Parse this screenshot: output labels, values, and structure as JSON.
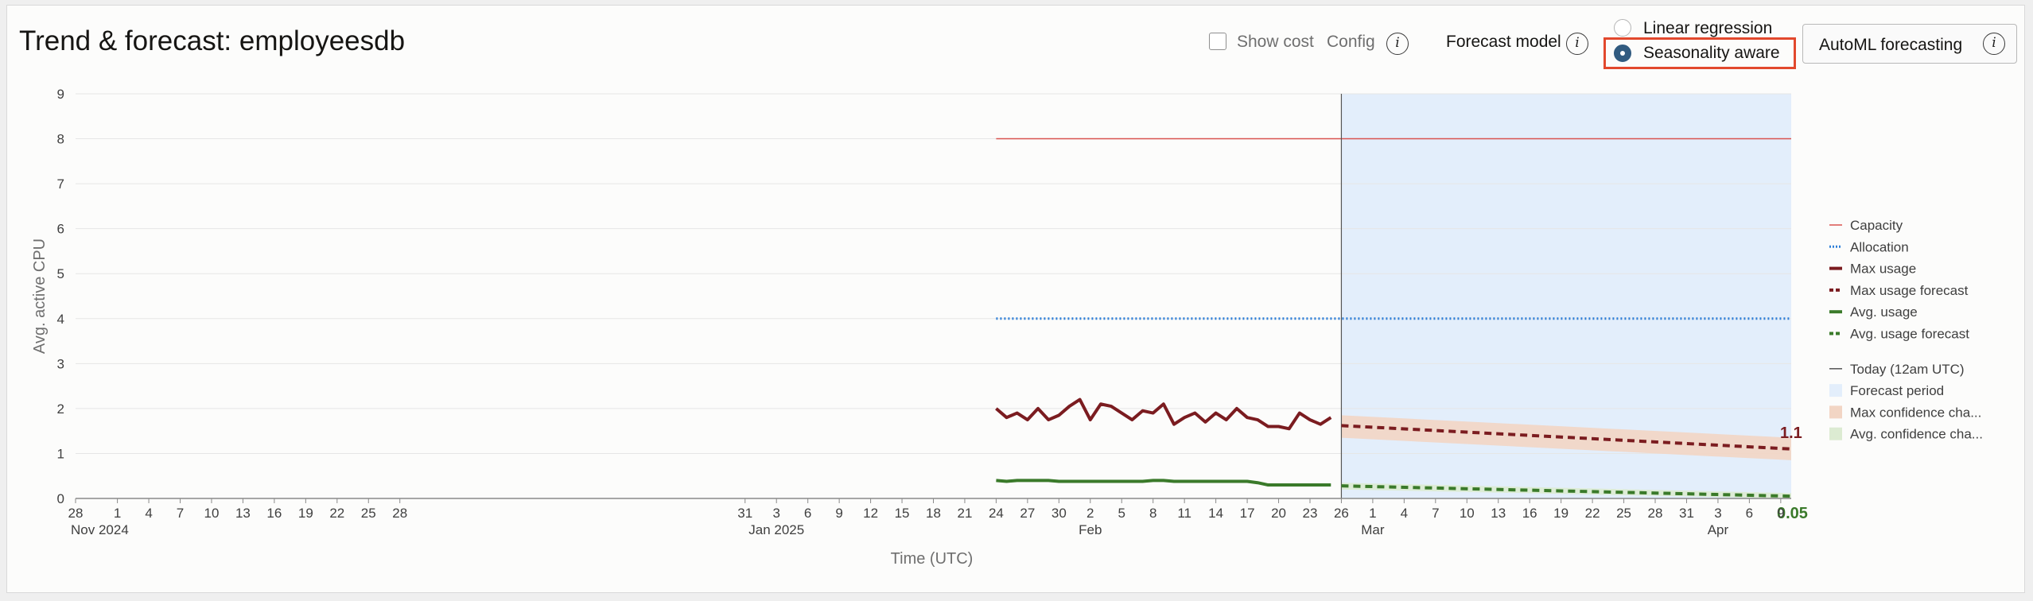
{
  "header": {
    "title": "Trend & forecast: employeesdb",
    "show_cost_label": "Show cost",
    "show_cost_checked": false,
    "config_label": "Config",
    "forecast_model_label": "Forecast model",
    "info_glyph": "i",
    "radio_options": [
      {
        "label": "Linear regression",
        "selected": false
      },
      {
        "label": "Seasonality aware",
        "selected": true
      }
    ],
    "automl_label": "AutoML forecasting"
  },
  "colors": {
    "capacity": "#d9534f",
    "allocation": "#2f7fd8",
    "max_usage": "#7b1c20",
    "avg_usage": "#3a7a2a",
    "forecast_period": "#e3eefb",
    "max_confidence": "#f2d5c4",
    "avg_confidence": "#dcebd2",
    "today": "#555555",
    "highlight": "#e2482d"
  },
  "chart_data": {
    "type": "line",
    "xlabel": "Time (UTC)",
    "ylabel": "Avg. active CPU",
    "ylim": [
      0,
      9
    ],
    "yticks": [
      0,
      1,
      2,
      3,
      4,
      5,
      6,
      7,
      8,
      9
    ],
    "xlim": [
      "2024-10-28",
      "2025-04-10"
    ],
    "xticks": [
      {
        "date": "2024-10-28",
        "label": "28",
        "sub": "Nov 2024"
      },
      {
        "date": "2024-11-01",
        "label": "1",
        "sub": ""
      },
      {
        "date": "2024-11-04",
        "label": "4",
        "sub": ""
      },
      {
        "date": "2024-11-07",
        "label": "7",
        "sub": ""
      },
      {
        "date": "2024-11-10",
        "label": "10",
        "sub": ""
      },
      {
        "date": "2024-11-13",
        "label": "13",
        "sub": ""
      },
      {
        "date": "2024-11-16",
        "label": "16",
        "sub": ""
      },
      {
        "date": "2024-11-19",
        "label": "19",
        "sub": ""
      },
      {
        "date": "2024-11-22",
        "label": "22",
        "sub": ""
      },
      {
        "date": "2024-11-25",
        "label": "25",
        "sub": ""
      },
      {
        "date": "2024-11-28",
        "label": "28",
        "sub": ""
      },
      {
        "date": "2024-12-31",
        "label": "31",
        "sub": ""
      },
      {
        "date": "2025-01-03",
        "label": "3",
        "sub": "Jan 2025"
      },
      {
        "date": "2025-01-06",
        "label": "6",
        "sub": ""
      },
      {
        "date": "2025-01-09",
        "label": "9",
        "sub": ""
      },
      {
        "date": "2025-01-12",
        "label": "12",
        "sub": ""
      },
      {
        "date": "2025-01-15",
        "label": "15",
        "sub": ""
      },
      {
        "date": "2025-01-18",
        "label": "18",
        "sub": ""
      },
      {
        "date": "2025-01-21",
        "label": "21",
        "sub": ""
      },
      {
        "date": "2025-01-24",
        "label": "24",
        "sub": ""
      },
      {
        "date": "2025-01-27",
        "label": "27",
        "sub": ""
      },
      {
        "date": "2025-01-30",
        "label": "30",
        "sub": ""
      },
      {
        "date": "2025-02-02",
        "label": "2",
        "sub": "Feb"
      },
      {
        "date": "2025-02-05",
        "label": "5",
        "sub": ""
      },
      {
        "date": "2025-02-08",
        "label": "8",
        "sub": ""
      },
      {
        "date": "2025-02-11",
        "label": "11",
        "sub": ""
      },
      {
        "date": "2025-02-14",
        "label": "14",
        "sub": ""
      },
      {
        "date": "2025-02-17",
        "label": "17",
        "sub": ""
      },
      {
        "date": "2025-02-20",
        "label": "20",
        "sub": ""
      },
      {
        "date": "2025-02-23",
        "label": "23",
        "sub": ""
      },
      {
        "date": "2025-02-26",
        "label": "26",
        "sub": ""
      },
      {
        "date": "2025-03-01",
        "label": "1",
        "sub": "Mar"
      },
      {
        "date": "2025-03-04",
        "label": "4",
        "sub": ""
      },
      {
        "date": "2025-03-07",
        "label": "7",
        "sub": ""
      },
      {
        "date": "2025-03-10",
        "label": "10",
        "sub": ""
      },
      {
        "date": "2025-03-13",
        "label": "13",
        "sub": ""
      },
      {
        "date": "2025-03-16",
        "label": "16",
        "sub": ""
      },
      {
        "date": "2025-03-19",
        "label": "19",
        "sub": ""
      },
      {
        "date": "2025-03-22",
        "label": "22",
        "sub": ""
      },
      {
        "date": "2025-03-25",
        "label": "25",
        "sub": ""
      },
      {
        "date": "2025-03-28",
        "label": "28",
        "sub": ""
      },
      {
        "date": "2025-03-31",
        "label": "31",
        "sub": ""
      },
      {
        "date": "2025-04-03",
        "label": "3",
        "sub": "Apr"
      },
      {
        "date": "2025-04-06",
        "label": "6",
        "sub": ""
      },
      {
        "date": "2025-04-09",
        "label": "9",
        "sub": ""
      }
    ],
    "today": "2025-02-26",
    "forecast_period": [
      "2025-02-26",
      "2025-04-10"
    ],
    "capacity": {
      "name": "Capacity",
      "from": "2025-01-24",
      "to": "2025-04-10",
      "value": 8
    },
    "allocation": {
      "name": "Allocation",
      "from": "2025-01-24",
      "to": "2025-04-10",
      "value": 4
    },
    "max_usage": {
      "name": "Max usage",
      "x": [
        "2025-01-24",
        "2025-01-25",
        "2025-01-26",
        "2025-01-27",
        "2025-01-28",
        "2025-01-29",
        "2025-01-30",
        "2025-01-31",
        "2025-02-01",
        "2025-02-02",
        "2025-02-03",
        "2025-02-04",
        "2025-02-05",
        "2025-02-06",
        "2025-02-07",
        "2025-02-08",
        "2025-02-09",
        "2025-02-10",
        "2025-02-11",
        "2025-02-12",
        "2025-02-13",
        "2025-02-14",
        "2025-02-15",
        "2025-02-16",
        "2025-02-17",
        "2025-02-18",
        "2025-02-19",
        "2025-02-20",
        "2025-02-21",
        "2025-02-22",
        "2025-02-23",
        "2025-02-24",
        "2025-02-25"
      ],
      "y": [
        2.0,
        1.8,
        1.9,
        1.75,
        2.0,
        1.75,
        1.85,
        2.05,
        2.2,
        1.75,
        2.1,
        2.05,
        1.9,
        1.75,
        1.95,
        1.9,
        2.1,
        1.65,
        1.8,
        1.9,
        1.7,
        1.9,
        1.75,
        2.0,
        1.8,
        1.75,
        1.6,
        1.6,
        1.55,
        1.9,
        1.75,
        1.65,
        1.8
      ]
    },
    "avg_usage": {
      "name": "Avg. usage",
      "x": [
        "2025-01-24",
        "2025-01-25",
        "2025-01-26",
        "2025-01-27",
        "2025-01-28",
        "2025-01-29",
        "2025-01-30",
        "2025-01-31",
        "2025-02-01",
        "2025-02-02",
        "2025-02-03",
        "2025-02-04",
        "2025-02-05",
        "2025-02-06",
        "2025-02-07",
        "2025-02-08",
        "2025-02-09",
        "2025-02-10",
        "2025-02-11",
        "2025-02-12",
        "2025-02-13",
        "2025-02-14",
        "2025-02-15",
        "2025-02-16",
        "2025-02-17",
        "2025-02-18",
        "2025-02-19",
        "2025-02-20",
        "2025-02-21",
        "2025-02-22",
        "2025-02-23",
        "2025-02-24",
        "2025-02-25"
      ],
      "y": [
        0.4,
        0.38,
        0.4,
        0.4,
        0.4,
        0.4,
        0.38,
        0.38,
        0.38,
        0.38,
        0.38,
        0.38,
        0.38,
        0.38,
        0.38,
        0.4,
        0.4,
        0.38,
        0.38,
        0.38,
        0.38,
        0.38,
        0.38,
        0.38,
        0.38,
        0.35,
        0.3,
        0.3,
        0.3,
        0.3,
        0.3,
        0.3,
        0.3
      ]
    },
    "max_usage_forecast": {
      "name": "Max usage forecast",
      "x": [
        "2025-02-26",
        "2025-04-10"
      ],
      "y": [
        1.62,
        1.1
      ],
      "band_upper": [
        1.85,
        1.35
      ],
      "band_lower": [
        1.35,
        0.85
      ],
      "end_label": "1.1"
    },
    "avg_usage_forecast": {
      "name": "Avg. usage forecast",
      "x": [
        "2025-02-26",
        "2025-04-10"
      ],
      "y": [
        0.28,
        0.05
      ],
      "band_upper": [
        0.35,
        0.12
      ],
      "band_lower": [
        0.2,
        0.0
      ],
      "end_label": "0.05"
    },
    "legend_position": "right",
    "legend": [
      {
        "key": "capacity",
        "label": "Capacity",
        "style": "thin-solid",
        "color": "#d9534f"
      },
      {
        "key": "allocation",
        "label": "Allocation",
        "style": "dotted",
        "color": "#2f7fd8"
      },
      {
        "key": "max_usage",
        "label": "Max usage",
        "style": "thick-solid",
        "color": "#7b1c20"
      },
      {
        "key": "max_usage_forecast",
        "label": "Max usage forecast",
        "style": "thick-dashed",
        "color": "#7b1c20"
      },
      {
        "key": "avg_usage",
        "label": "Avg. usage",
        "style": "thick-solid",
        "color": "#3a7a2a"
      },
      {
        "key": "avg_usage_forecast",
        "label": "Avg. usage forecast",
        "style": "thick-dashed",
        "color": "#3a7a2a"
      },
      {
        "key": "today",
        "label": "Today (12am UTC)",
        "style": "thin-solid",
        "color": "#555555"
      },
      {
        "key": "forecast_period",
        "label": "Forecast period",
        "style": "swatch",
        "color": "#e3eefb"
      },
      {
        "key": "max_confidence",
        "label": "Max confidence cha...",
        "style": "swatch",
        "color": "#f2d5c4"
      },
      {
        "key": "avg_confidence",
        "label": "Avg. confidence cha...",
        "style": "swatch",
        "color": "#dcebd2"
      }
    ]
  }
}
